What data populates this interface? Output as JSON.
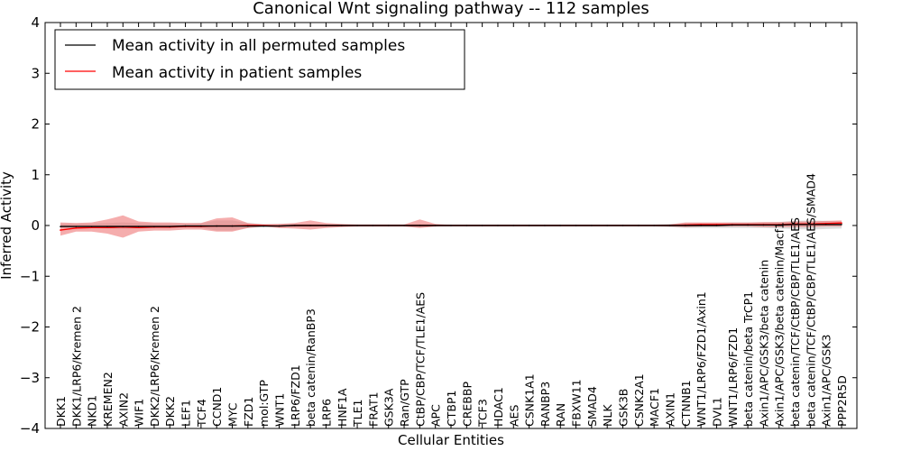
{
  "chart_data": {
    "type": "line",
    "title": "Canonical Wnt signaling pathway -- 112 samples",
    "xlabel": "Cellular Entities",
    "ylabel": "Inferred Activity",
    "ylim": [
      -4,
      4
    ],
    "yticks": [
      -4,
      -3,
      -2,
      -1,
      0,
      1,
      2,
      3,
      4
    ],
    "ytick_labels": [
      "−4",
      "−3",
      "−2",
      "−1",
      "0",
      "1",
      "2",
      "3",
      "4"
    ],
    "legend_position": "upper-left",
    "grid": false,
    "colors": {
      "permuted": "#000000",
      "patient": "#ff0000",
      "patient_band": "#ee7777",
      "permuted_band": "#bbbbbb"
    },
    "categories": [
      "DKK1",
      "DKK1/LRP6/Kremen 2",
      "NKD1",
      "KREMEN2",
      "AXIN2",
      "WIF1",
      "DKK2/LRP6/Kremen 2",
      "DKK2",
      "LEF1",
      "TCF4",
      "CCND1",
      "MYC",
      "FZD1",
      "mol:GTP",
      "WNT1",
      "LRP6/FZD1",
      "beta catenin/RanBP3",
      "LRP6",
      "HNF1A",
      "TLE1",
      "FRAT1",
      "GSK3A",
      "Ran/GTP",
      "CtBP/CBP/TCF/TLE1/AES",
      "APC",
      "CTBP1",
      "CREBBP",
      "TCF3",
      "HDAC1",
      "AES",
      "CSNK1A1",
      "RANBP3",
      "RAN",
      "FBXW11",
      "SMAD4",
      "NLK",
      "GSK3B",
      "CSNK2A1",
      "MACF1",
      "AXIN1",
      "CTNNB1",
      "WNT1/LRP6/FZD1/Axin1",
      "DVL1",
      "WNT1/LRP6/FZD1",
      "beta catenin/beta TrCP1",
      "Axin1/APC/GSK3/beta catenin",
      "Axin1/APC/GSK3/beta catenin/Macf1",
      "beta catenin/TCF/CtBP/CBP/TLE1/AES",
      "beta catenin/TCF/CtBP/CBP/TLE1/AES/SMAD4",
      "Axin1/APC/GSK3",
      "PPP2R5D"
    ],
    "series": [
      {
        "name": "Mean activity in all permuted samples",
        "values": [
          -0.02,
          -0.02,
          -0.02,
          -0.02,
          -0.02,
          -0.02,
          -0.02,
          -0.02,
          -0.01,
          -0.01,
          -0.01,
          -0.01,
          -0.01,
          -0.01,
          -0.01,
          0,
          0,
          0,
          0,
          0,
          0,
          0,
          0,
          0,
          0,
          0,
          0,
          0,
          0,
          0,
          0,
          0,
          0,
          0,
          0,
          0,
          0,
          0,
          0,
          0,
          0,
          0,
          0,
          0.01,
          0.01,
          0.01,
          0.01,
          0.02,
          0.02,
          0.02,
          0.02
        ],
        "band_low": [
          -0.05,
          -0.05,
          -0.05,
          -0.06,
          -0.07,
          -0.06,
          -0.05,
          -0.05,
          -0.04,
          -0.05,
          -0.1,
          -0.1,
          -0.05,
          -0.03,
          -0.03,
          -0.03,
          -0.03,
          -0.02,
          -0.02,
          -0.02,
          -0.02,
          -0.02,
          -0.02,
          -0.03,
          -0.02,
          -0.02,
          -0.02,
          -0.02,
          -0.02,
          -0.02,
          -0.02,
          -0.02,
          -0.02,
          -0.02,
          -0.02,
          -0.02,
          -0.02,
          -0.02,
          -0.02,
          -0.03,
          -0.05,
          -0.05,
          -0.05,
          -0.05,
          -0.05,
          -0.05,
          -0.06,
          -0.07,
          -0.08,
          -0.07,
          -0.06
        ],
        "band_high": [
          0.04,
          0.04,
          0.04,
          0.05,
          0.06,
          0.05,
          0.04,
          0.04,
          0.04,
          0.05,
          0.1,
          0.1,
          0.05,
          0.03,
          0.03,
          0.03,
          0.03,
          0.02,
          0.02,
          0.02,
          0.02,
          0.02,
          0.02,
          0.03,
          0.02,
          0.02,
          0.02,
          0.02,
          0.02,
          0.02,
          0.02,
          0.02,
          0.02,
          0.02,
          0.02,
          0.02,
          0.02,
          0.02,
          0.02,
          0.03,
          0.05,
          0.05,
          0.05,
          0.06,
          0.06,
          0.06,
          0.07,
          0.09,
          0.1,
          0.09,
          0.08
        ]
      },
      {
        "name": "Mean activity in patient samples",
        "values": [
          -0.09,
          -0.05,
          -0.04,
          -0.04,
          -0.03,
          -0.04,
          -0.03,
          -0.03,
          -0.02,
          -0.02,
          -0.01,
          -0.01,
          0,
          0,
          -0.01,
          0,
          0,
          0,
          0,
          0,
          0,
          0,
          0,
          0,
          0,
          0,
          0,
          0,
          0,
          0,
          0,
          0,
          0,
          0,
          0,
          0,
          0,
          0,
          0,
          0,
          0.01,
          0.02,
          0.02,
          0.02,
          0.02,
          0.02,
          0.02,
          0.03,
          0.03,
          0.04,
          0.05
        ],
        "band_low": [
          -0.2,
          -0.12,
          -0.12,
          -0.16,
          -0.24,
          -0.12,
          -0.1,
          -0.1,
          -0.08,
          -0.08,
          -0.12,
          -0.12,
          -0.05,
          -0.02,
          -0.05,
          -0.06,
          -0.08,
          -0.05,
          -0.03,
          -0.02,
          -0.02,
          -0.02,
          -0.02,
          -0.05,
          -0.02,
          -0.01,
          -0.01,
          -0.01,
          -0.01,
          -0.01,
          -0.01,
          -0.01,
          -0.01,
          -0.01,
          -0.01,
          -0.01,
          -0.01,
          -0.01,
          -0.01,
          -0.02,
          -0.03,
          -0.02,
          -0.02,
          -0.02,
          -0.02,
          -0.03,
          -0.03,
          -0.03,
          -0.03,
          -0.02,
          -0.02
        ],
        "band_high": [
          0.06,
          0.05,
          0.06,
          0.12,
          0.2,
          0.08,
          0.06,
          0.06,
          0.05,
          0.05,
          0.14,
          0.16,
          0.05,
          0.02,
          0.03,
          0.05,
          0.1,
          0.05,
          0.03,
          0.02,
          0.02,
          0.02,
          0.02,
          0.12,
          0.03,
          0.01,
          0.01,
          0.01,
          0.01,
          0.01,
          0.01,
          0.01,
          0.01,
          0.01,
          0.01,
          0.01,
          0.01,
          0.01,
          0.01,
          0.02,
          0.06,
          0.06,
          0.06,
          0.06,
          0.06,
          0.07,
          0.07,
          0.08,
          0.08,
          0.09,
          0.1
        ]
      }
    ]
  }
}
